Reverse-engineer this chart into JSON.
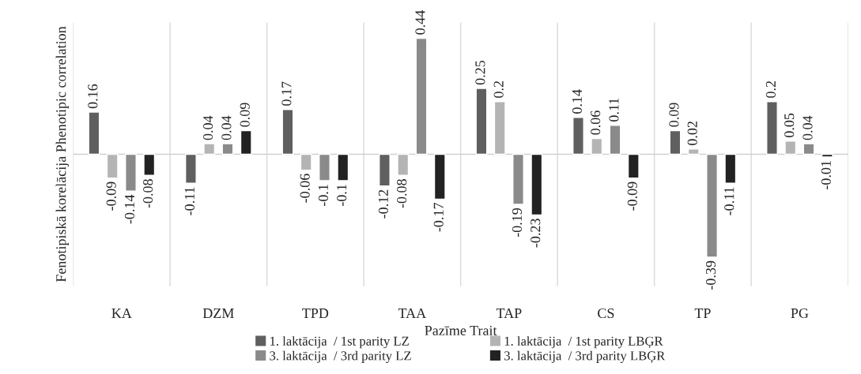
{
  "chart_data": {
    "type": "bar",
    "xlabel": "Pazīme Trait",
    "ylabel": "Fenotipiskā korelācija Phenotipic correlation",
    "categories": [
      "KA",
      "DZM",
      "TPD",
      "TAA",
      "TAP",
      "CS",
      "TP",
      "PG"
    ],
    "series": [
      {
        "name": "1. laktācija  / 1st parity LZ",
        "color": "#5f5f5f",
        "values": [
          0.16,
          -0.11,
          0.17,
          -0.12,
          0.25,
          0.14,
          0.09,
          0.2
        ]
      },
      {
        "name": "1. laktācija  / 1st parity LBĢR",
        "color": "#b4b4b4",
        "values": [
          -0.09,
          0.04,
          -0.06,
          -0.08,
          0.2,
          0.06,
          0.02,
          0.05
        ]
      },
      {
        "name": "3. laktācija  / 3rd parity LZ",
        "color": "#8a8a8a",
        "values": [
          -0.14,
          0.04,
          -0.1,
          0.44,
          -0.19,
          0.11,
          -0.39,
          0.04
        ]
      },
      {
        "name": "3. laktācija  / 3rd parity LBĢR",
        "color": "#222222",
        "values": [
          -0.08,
          0.09,
          -0.1,
          -0.17,
          -0.23,
          -0.09,
          -0.11,
          -0.01
        ]
      }
    ],
    "ylim": [
      -0.5,
      0.5
    ],
    "tick_labels": "x",
    "grid": "x",
    "legend": "bottom",
    "data_labels": true
  }
}
